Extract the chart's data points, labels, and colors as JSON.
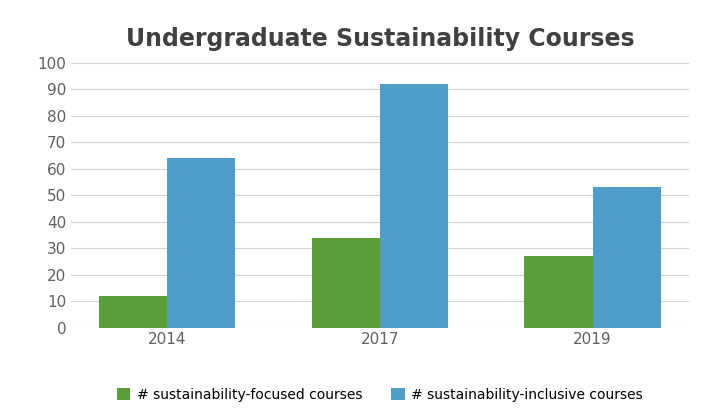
{
  "title": "Undergraduate Sustainability Courses",
  "years": [
    "2014",
    "2017",
    "2019"
  ],
  "focused_values": [
    12,
    34,
    27
  ],
  "inclusive_values": [
    64,
    92,
    53
  ],
  "focused_label": "# sustainability-focused courses",
  "inclusive_label": "# sustainability-inclusive courses",
  "focused_color": "#5a9e3a",
  "inclusive_color": "#4f9dc8",
  "ylim": [
    0,
    100
  ],
  "yticks": [
    0,
    10,
    20,
    30,
    40,
    50,
    60,
    70,
    80,
    90,
    100
  ],
  "title_fontsize": 17,
  "tick_fontsize": 11,
  "legend_fontsize": 10,
  "bar_width": 0.32,
  "background_color": "#ffffff",
  "grid_color": "#d0d0d0",
  "title_color": "#404040",
  "tick_color": "#606060"
}
